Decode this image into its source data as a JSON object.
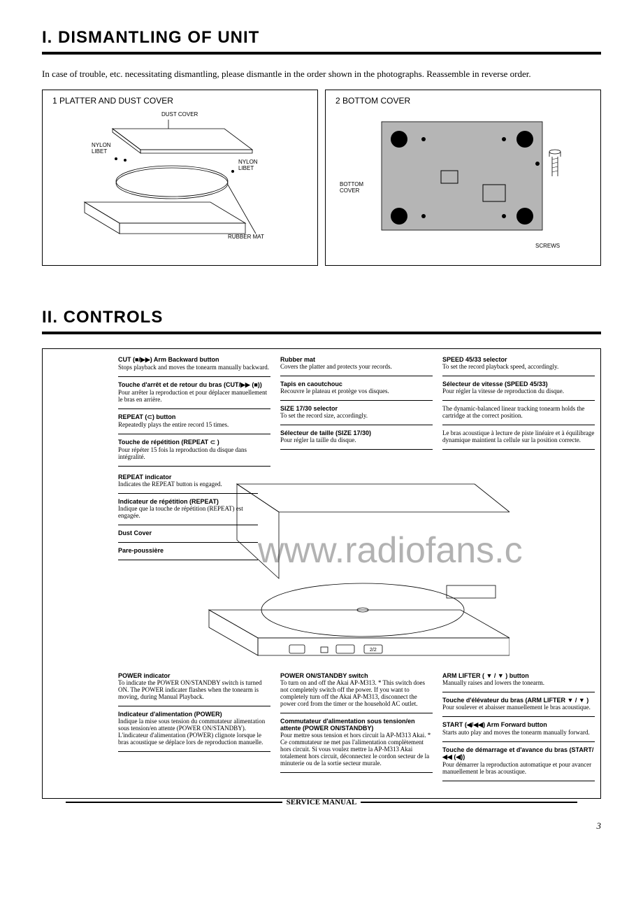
{
  "section1_title": "I. DISMANTLING OF UNIT",
  "intro_text": "In case of trouble, etc. necessitating dismantling, please dismantle in the order shown in the photographs. Reassemble in reverse order.",
  "diagram1": {
    "title": "1  PLATTER AND DUST COVER",
    "labels": {
      "dust_cover": "DUST COVER",
      "nylon_libet_1": "NYLON LIBET",
      "nylon_libet_2": "NYLON LIBET",
      "rubber_mat": "RUBBER MAT"
    }
  },
  "diagram2": {
    "title": "2  BOTTOM COVER",
    "labels": {
      "bottom_cover": "BOTTOM COVER",
      "screws": "SCREWS"
    }
  },
  "section2_title": "II. CONTROLS",
  "watermark": "www.radiofans.c",
  "top_cols": {
    "c1": [
      {
        "t": "CUT (■/▶▶) Arm Backward button",
        "p": "Stops playback and moves the tonearm manually backward."
      },
      {
        "t": "Touche d'arrêt et de retour du bras (CUT/▶▶ (■))",
        "p": "Pour arrêter la reproduction et pour déplacer manuellement le bras en arrière."
      },
      {
        "t": "REPEAT (⊂) button",
        "p": "Repeatedly plays the entire record 15 times."
      },
      {
        "t": "Touche de répétition (REPEAT ⊂ )",
        "p": "Pour répéter 15 fois la reproduction du disque dans intégralité."
      }
    ],
    "c2": [
      {
        "t": "Rubber mat",
        "p": "Covers the platter and protects your records."
      },
      {
        "t": "Tapis en caoutchouc",
        "p": "Recouvre le plateau et protège vos disques."
      },
      {
        "t": "SIZE 17/30 selector",
        "p": "To set the record size, accordingly."
      },
      {
        "t": "Sélecteur de taille (SIZE 17/30)",
        "p": "Pour régler la taille du disque."
      }
    ],
    "c3": [
      {
        "t": "SPEED 45/33 selector",
        "p": "To set the record playback speed, accordingly."
      },
      {
        "t": "Sélecteur de vitesse (SPEED 45/33)",
        "p": "Pour régler la vitesse de reproduction du disque."
      },
      {
        "t": "",
        "p": "The dynamic-balanced linear tracking tonearm holds the cartridge at the correct position."
      },
      {
        "t": "",
        "p": "Le bras acoustique à lecture de piste linéaire et à équilibrage dynamique maintient la cellule sur la position correcte."
      }
    ]
  },
  "mid_left": [
    {
      "t": "REPEAT indicator",
      "p": "Indicates the REPEAT button is engaged."
    },
    {
      "t": "Indicateur de répétition (REPEAT)",
      "p": "Indique que la touche de répétition (REPEAT) est engagée."
    },
    {
      "t": "Dust Cover",
      "p": ""
    },
    {
      "t": "Pare-poussière",
      "p": ""
    }
  ],
  "bottom_cols": {
    "c1": [
      {
        "t": "POWER indicator",
        "p": "To indicate the POWER ON/STANDBY switch is turned ON. The POWER indicater flashes when the tonearm is moving, during Manual Playback."
      },
      {
        "t": "Indicateur d'alimentation (POWER)",
        "p": "Indique la mise sous tension du commutateur alimentation sous tension/en attente (POWER ON/STANDBY). L'indicateur d'alimentation (POWER) clignote lorsque le bras acoustique se déplace lors de reproduction manuelle."
      }
    ],
    "c2": [
      {
        "t": "POWER ON/STANDBY switch",
        "p": "To turn on and off the Akai AP-M313.  *  This switch does not completely switch off the power. If you want to completely turn off the Akai AP-M313, disconnect the power cord from the timer or the household AC outlet."
      },
      {
        "t": "Commutateur d'alimentation sous tension/en attente (POWER ON/STANDBY)",
        "p": "Pour mettre sous tension et hors circuit la AP-M313 Akai.  *  Ce commutateur ne met pas l'alimentation complètement hors circuit. Si vous voulez mettre la AP-M313 Akai totalement hors circuit, déconnectez le cordon secteur de la minuterie ou de la sortie secteur murale."
      }
    ],
    "c3": [
      {
        "t": "ARM LIFTER ( ▼ / ▼ ) button",
        "p": "Manually raises and lowers the tonearm."
      },
      {
        "t": "Touche d'élévateur du bras (ARM LIFTER ▼ / ▼ )",
        "p": "Pour soulever et abaisser manuellement le bras acoustique."
      },
      {
        "t": "START (◀/◀◀) Arm Forward button",
        "p": "Starts auto play and moves the tonearm manually forward."
      },
      {
        "t": "Touche de démarrage et d'avance du bras (START/◀◀ (◀))",
        "p": "Pour démarrer la reproduction automatique et pour avancer manuellement le bras acoustique."
      }
    ]
  },
  "footer": "SERVICE MANUAL",
  "page_no": "3"
}
